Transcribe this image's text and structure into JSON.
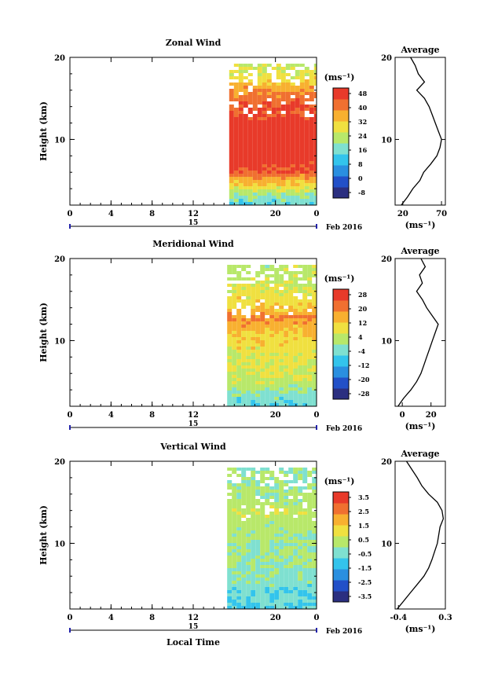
{
  "panels": [
    {
      "title": "Zonal Wind",
      "ylabel": "Height (km)",
      "yticks": [
        "20",
        "10"
      ],
      "xticks": [
        "0",
        "4",
        "8",
        "12",
        "20",
        "0"
      ],
      "date_mark": "15",
      "date_label": "Feb 2016",
      "unit_label": "(ms⁻¹)",
      "colorbar_ticks": [
        "48",
        "40",
        "32",
        "24",
        "16",
        "8",
        "0",
        "-8"
      ],
      "avg_title": "Average",
      "avg_xticks": [
        "20",
        "70"
      ],
      "avg_yticks": [
        "20",
        "10"
      ],
      "avg_unit": "(ms⁻¹)"
    },
    {
      "title": "Meridional Wind",
      "ylabel": "Height (km)",
      "yticks": [
        "20",
        "10"
      ],
      "xticks": [
        "0",
        "4",
        "8",
        "12",
        "20",
        "0"
      ],
      "date_mark": "15",
      "date_label": "Feb 2016",
      "unit_label": "(ms⁻¹)",
      "colorbar_ticks": [
        "28",
        "20",
        "12",
        "4",
        "-4",
        "-12",
        "-20",
        "-28"
      ],
      "avg_title": "Average",
      "avg_xticks": [
        "0",
        "20"
      ],
      "avg_yticks": [
        "20",
        "10"
      ],
      "avg_unit": "(ms⁻¹)"
    },
    {
      "title": "Vertical Wind",
      "ylabel": "Height (km)",
      "yticks": [
        "20",
        "10"
      ],
      "xticks": [
        "0",
        "4",
        "8",
        "12",
        "20",
        "0"
      ],
      "date_mark": "15",
      "date_label": "Feb 2016",
      "unit_label": "(ms⁻¹)",
      "colorbar_ticks": [
        "3.5",
        "2.5",
        "1.5",
        "0.5",
        "-0.5",
        "-1.5",
        "-2.5",
        "-3.5"
      ],
      "avg_title": "Average",
      "avg_xticks": [
        "-0.4",
        "0.3"
      ],
      "avg_yticks": [
        "20",
        "10"
      ],
      "avg_unit": "(ms⁻¹)",
      "xlabel": "Local Time"
    }
  ],
  "colors": {
    "scale": [
      "#2b2f80",
      "#2250c8",
      "#2a8fe0",
      "#33c4ec",
      "#7fe0d0",
      "#b8e86a",
      "#f0e040",
      "#f8b030",
      "#f07030",
      "#e83a2a"
    ]
  },
  "chart_data": [
    {
      "type": "heatmap",
      "title": "Zonal Wind",
      "ylabel": "Height (km)",
      "xlabel": "",
      "x_range_hours": [
        0,
        24
      ],
      "data_start_hour": 15.5,
      "ylim": [
        2,
        20
      ],
      "colorbar_range": [
        -8,
        52
      ],
      "profile_by_height": [
        [
          2,
          16
        ],
        [
          3,
          20
        ],
        [
          4,
          28
        ],
        [
          5,
          36
        ],
        [
          6,
          44
        ],
        [
          8,
          52
        ],
        [
          10,
          52
        ],
        [
          12,
          50
        ],
        [
          14,
          46
        ],
        [
          15,
          44
        ],
        [
          16,
          40
        ],
        [
          17,
          34
        ],
        [
          18,
          30
        ],
        [
          19,
          28
        ],
        [
          20,
          26
        ]
      ],
      "average_profile": {
        "xlim": [
          10,
          75
        ],
        "heights": [
          2,
          3,
          4,
          5,
          6,
          7,
          8,
          9,
          10,
          11,
          12,
          13,
          14,
          15,
          16,
          17,
          18,
          19,
          20
        ],
        "values": [
          18,
          26,
          33,
          42,
          47,
          56,
          64,
          68,
          70,
          66,
          62,
          58,
          54,
          48,
          38,
          48,
          40,
          36,
          30
        ]
      }
    },
    {
      "type": "heatmap",
      "title": "Meridional Wind",
      "ylabel": "Height (km)",
      "xlabel": "",
      "x_range_hours": [
        0,
        24
      ],
      "data_start_hour": 15.3,
      "ylim": [
        2,
        20
      ],
      "colorbar_range": [
        -32,
        32
      ],
      "profile_by_height": [
        [
          2,
          -8
        ],
        [
          3,
          -4
        ],
        [
          4,
          0
        ],
        [
          5,
          4
        ],
        [
          6,
          6
        ],
        [
          8,
          8
        ],
        [
          10,
          10
        ],
        [
          12,
          16
        ],
        [
          13,
          20
        ],
        [
          14,
          14
        ],
        [
          16,
          8
        ],
        [
          18,
          4
        ],
        [
          20,
          2
        ]
      ],
      "average_profile": {
        "xlim": [
          -5,
          30
        ],
        "heights": [
          2,
          3,
          4,
          5,
          6,
          7,
          8,
          9,
          10,
          11,
          12,
          13,
          14,
          15,
          16,
          17,
          18,
          19,
          20
        ],
        "values": [
          -3,
          1,
          6,
          10,
          13,
          15,
          17,
          19,
          21,
          23,
          25,
          21,
          17,
          14,
          10,
          14,
          12,
          16,
          13
        ]
      }
    },
    {
      "type": "heatmap",
      "title": "Vertical Wind",
      "ylabel": "Height (km)",
      "xlabel": "Local Time",
      "x_range_hours": [
        0,
        24
      ],
      "data_start_hour": 15.3,
      "ylim": [
        2,
        20
      ],
      "colorbar_range": [
        -4,
        4
      ],
      "profile_by_height": [
        [
          2,
          -1.0
        ],
        [
          4,
          -0.6
        ],
        [
          6,
          -0.3
        ],
        [
          8,
          0.0
        ],
        [
          10,
          0.1
        ],
        [
          12,
          0.3
        ],
        [
          14,
          0.6
        ],
        [
          16,
          0.1
        ],
        [
          18,
          -0.1
        ],
        [
          20,
          -0.2
        ]
      ],
      "average_profile": {
        "xlim": [
          -0.45,
          0.3
        ],
        "heights": [
          2,
          3,
          4,
          5,
          6,
          7,
          8,
          9,
          10,
          11,
          12,
          13,
          14,
          15,
          16,
          17,
          18,
          19,
          20
        ],
        "values": [
          -0.42,
          -0.32,
          -0.22,
          -0.12,
          -0.02,
          0.05,
          0.1,
          0.14,
          0.18,
          0.2,
          0.22,
          0.27,
          0.25,
          0.18,
          0.05,
          -0.05,
          -0.12,
          -0.2,
          -0.28
        ]
      }
    }
  ]
}
